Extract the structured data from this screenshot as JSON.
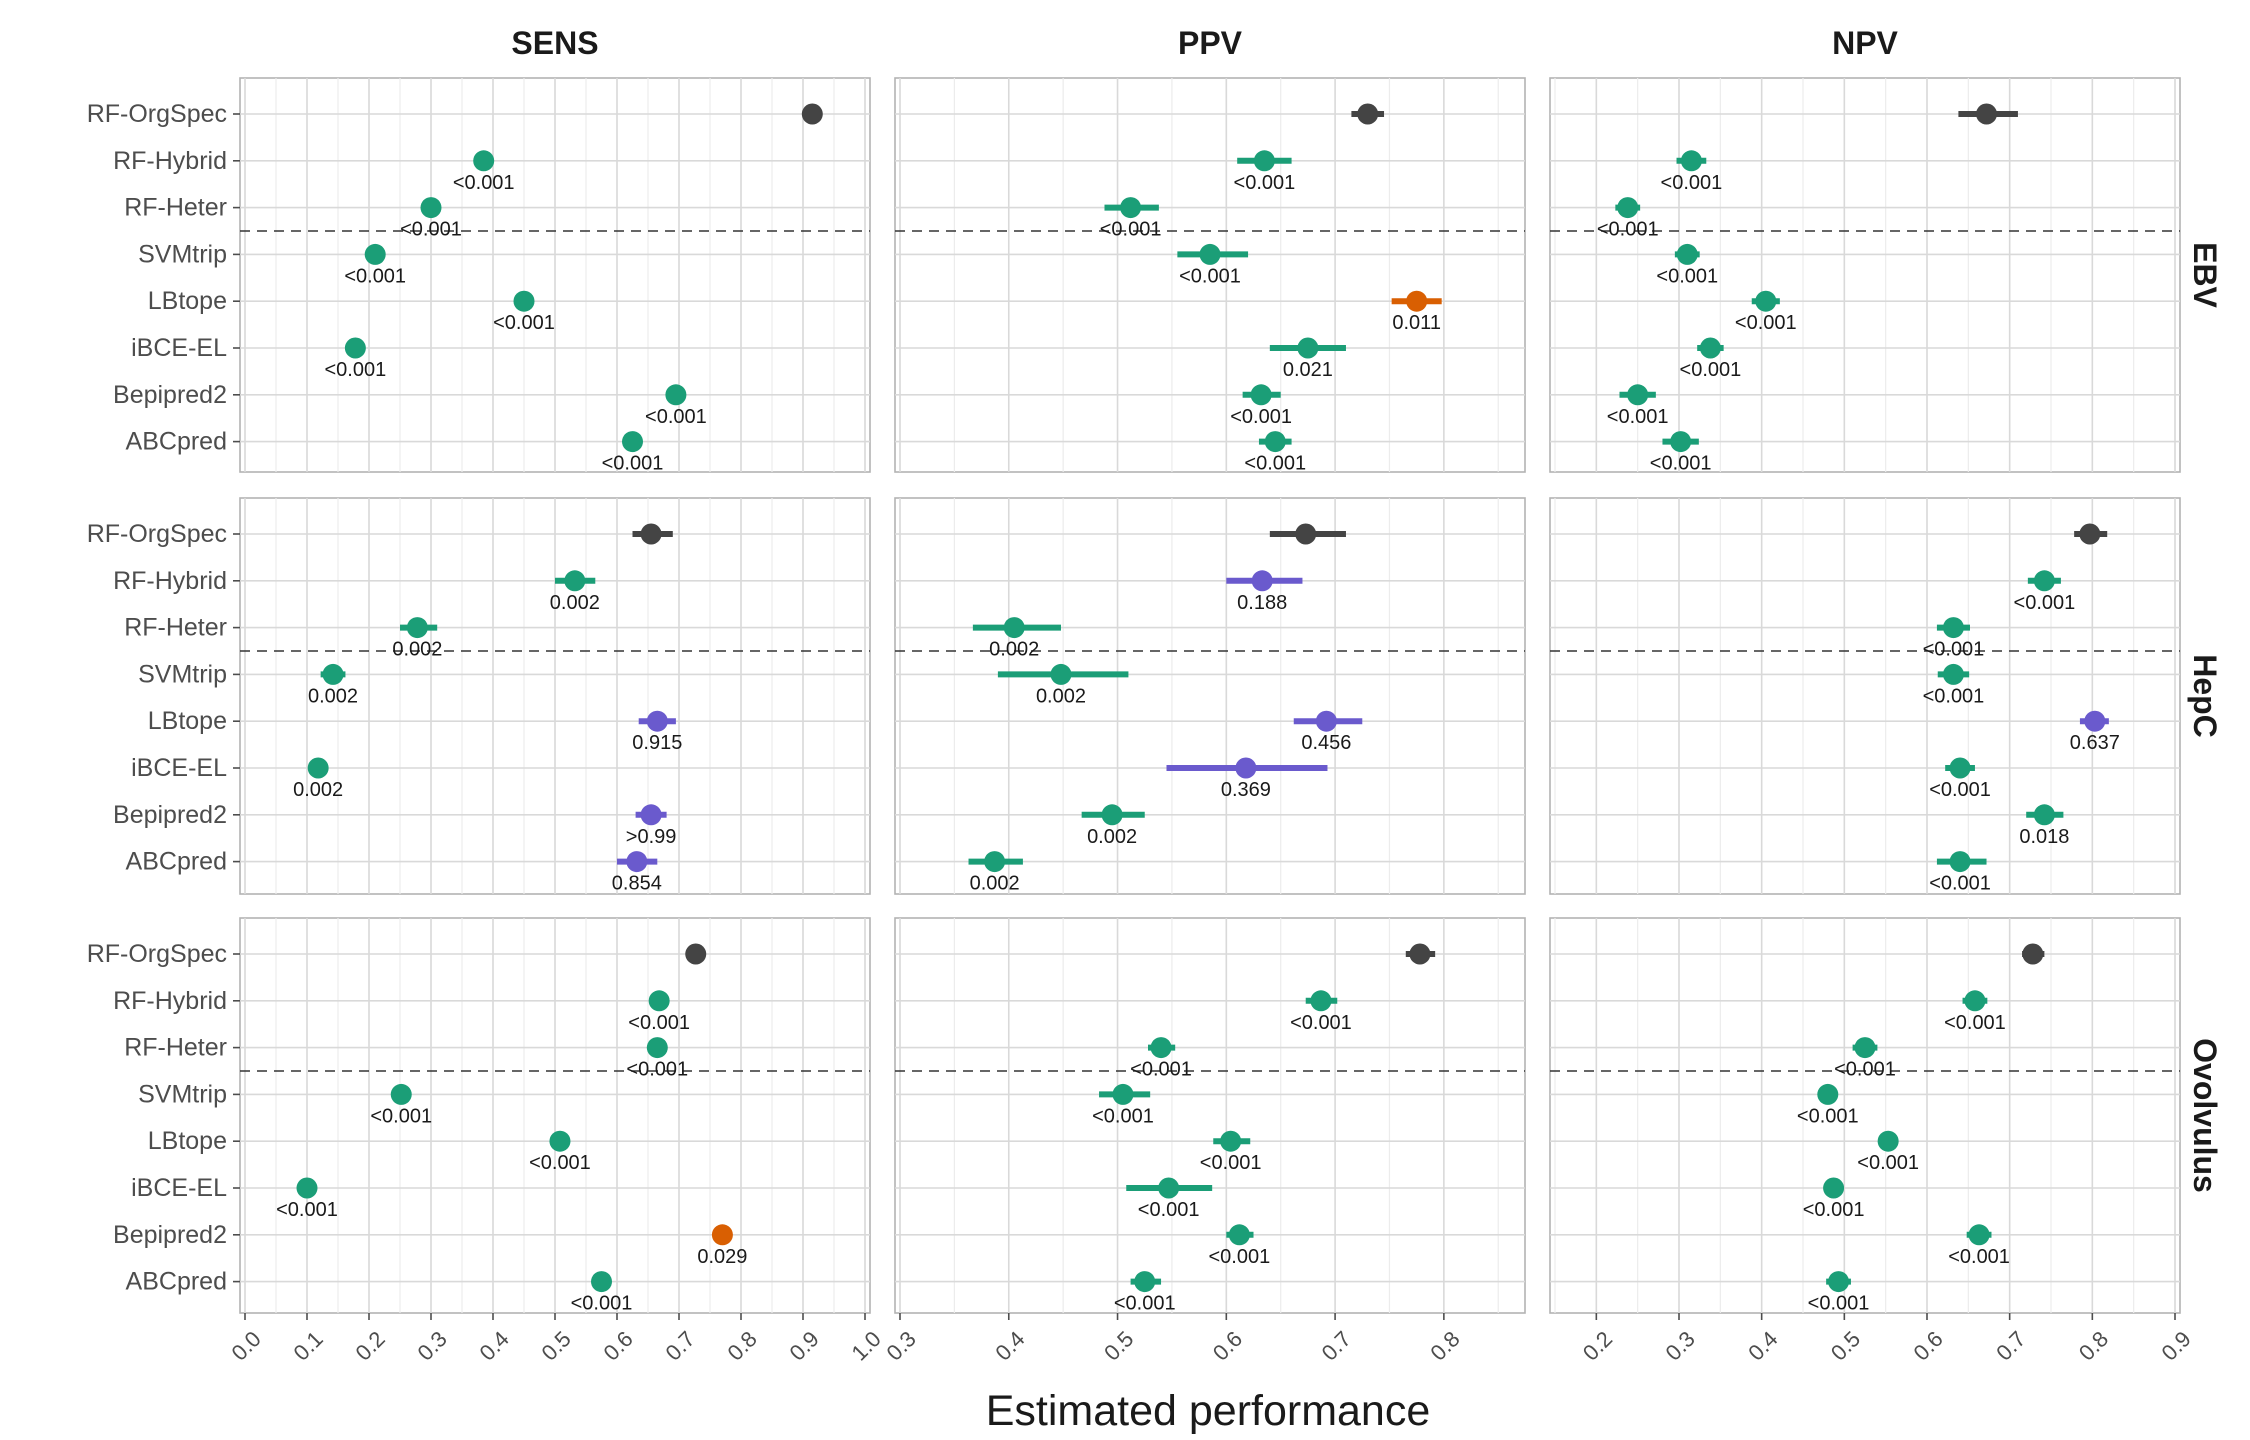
{
  "chart_data": {
    "type": "scatter",
    "xlabel": "Estimated performance",
    "methods": [
      "RF-OrgSpec",
      "RF-Hybrid",
      "RF-Heter",
      "SVMtrip",
      "LBtope",
      "iBCE-EL",
      "Bepipred2",
      "ABCpred"
    ],
    "columns": [
      {
        "name": "SENS",
        "xlim": [
          0.0,
          1.0
        ],
        "ticks": [
          "0.0",
          "0.1",
          "0.2",
          "0.3",
          "0.4",
          "0.5",
          "0.6",
          "0.7",
          "0.8",
          "0.9",
          "1.0"
        ],
        "tick_values": [
          0,
          0.1,
          0.2,
          0.3,
          0.4,
          0.5,
          0.6,
          0.7,
          0.8,
          0.9,
          1.0
        ]
      },
      {
        "name": "PPV",
        "xlim": [
          0.3,
          0.87
        ],
        "ticks": [
          "0.3",
          "0.4",
          "0.5",
          "0.6",
          "0.7",
          "0.8"
        ],
        "tick_values": [
          0.3,
          0.4,
          0.5,
          0.6,
          0.7,
          0.8
        ]
      },
      {
        "name": "NPV",
        "xlim": [
          0.15,
          0.9
        ],
        "ticks": [
          "0.2",
          "0.3",
          "0.4",
          "0.5",
          "0.6",
          "0.7",
          "0.8",
          "0.9"
        ],
        "tick_values": [
          0.2,
          0.3,
          0.4,
          0.5,
          0.6,
          0.7,
          0.8,
          0.9
        ]
      }
    ],
    "rows": [
      "EBV",
      "HepC",
      "Ovolvulus"
    ],
    "colors": {
      "reference": "#444444",
      "worse": "#1b9e77",
      "nonsig": "#6a5acd",
      "better": "#d95f02"
    },
    "panels": {
      "EBV": {
        "SENS": [
          {
            "method": "RF-OrgSpec",
            "est": 0.915,
            "lo": 0.915,
            "hi": 0.915,
            "p": "",
            "c": "reference"
          },
          {
            "method": "RF-Hybrid",
            "est": 0.385,
            "lo": 0.37,
            "hi": 0.4,
            "p": "<0.001",
            "c": "worse"
          },
          {
            "method": "RF-Heter",
            "est": 0.3,
            "lo": 0.29,
            "hi": 0.31,
            "p": "<0.001",
            "c": "worse"
          },
          {
            "method": "SVMtrip",
            "est": 0.21,
            "lo": 0.205,
            "hi": 0.215,
            "p": "<0.001",
            "c": "worse"
          },
          {
            "method": "LBtope",
            "est": 0.45,
            "lo": 0.44,
            "hi": 0.46,
            "p": "<0.001",
            "c": "worse"
          },
          {
            "method": "iBCE-EL",
            "est": 0.178,
            "lo": 0.173,
            "hi": 0.183,
            "p": "<0.001",
            "c": "worse"
          },
          {
            "method": "Bepipred2",
            "est": 0.695,
            "lo": 0.69,
            "hi": 0.7,
            "p": "<0.001",
            "c": "worse"
          },
          {
            "method": "ABCpred",
            "est": 0.625,
            "lo": 0.62,
            "hi": 0.63,
            "p": "<0.001",
            "c": "worse"
          }
        ],
        "PPV": [
          {
            "method": "RF-OrgSpec",
            "est": 0.73,
            "lo": 0.715,
            "hi": 0.745,
            "p": "",
            "c": "reference"
          },
          {
            "method": "RF-Hybrid",
            "est": 0.635,
            "lo": 0.61,
            "hi": 0.66,
            "p": "<0.001",
            "c": "worse"
          },
          {
            "method": "RF-Heter",
            "est": 0.512,
            "lo": 0.488,
            "hi": 0.538,
            "p": "<0.001",
            "c": "worse"
          },
          {
            "method": "SVMtrip",
            "est": 0.585,
            "lo": 0.555,
            "hi": 0.62,
            "p": "<0.001",
            "c": "worse"
          },
          {
            "method": "LBtope",
            "est": 0.775,
            "lo": 0.752,
            "hi": 0.798,
            "p": "0.011",
            "c": "better"
          },
          {
            "method": "iBCE-EL",
            "est": 0.675,
            "lo": 0.64,
            "hi": 0.71,
            "p": "0.021",
            "c": "worse"
          },
          {
            "method": "Bepipred2",
            "est": 0.632,
            "lo": 0.615,
            "hi": 0.65,
            "p": "<0.001",
            "c": "worse"
          },
          {
            "method": "ABCpred",
            "est": 0.645,
            "lo": 0.63,
            "hi": 0.66,
            "p": "<0.001",
            "c": "worse"
          }
        ],
        "NPV": [
          {
            "method": "RF-OrgSpec",
            "est": 0.672,
            "lo": 0.638,
            "hi": 0.71,
            "p": "",
            "c": "reference"
          },
          {
            "method": "RF-Hybrid",
            "est": 0.315,
            "lo": 0.297,
            "hi": 0.333,
            "p": "<0.001",
            "c": "worse"
          },
          {
            "method": "RF-Heter",
            "est": 0.238,
            "lo": 0.223,
            "hi": 0.253,
            "p": "<0.001",
            "c": "worse"
          },
          {
            "method": "SVMtrip",
            "est": 0.31,
            "lo": 0.295,
            "hi": 0.325,
            "p": "<0.001",
            "c": "worse"
          },
          {
            "method": "LBtope",
            "est": 0.405,
            "lo": 0.388,
            "hi": 0.422,
            "p": "<0.001",
            "c": "worse"
          },
          {
            "method": "iBCE-EL",
            "est": 0.338,
            "lo": 0.322,
            "hi": 0.354,
            "p": "<0.001",
            "c": "worse"
          },
          {
            "method": "Bepipred2",
            "est": 0.25,
            "lo": 0.228,
            "hi": 0.272,
            "p": "<0.001",
            "c": "worse"
          },
          {
            "method": "ABCpred",
            "est": 0.302,
            "lo": 0.28,
            "hi": 0.324,
            "p": "<0.001",
            "c": "worse"
          }
        ]
      },
      "HepC": {
        "SENS": [
          {
            "method": "RF-OrgSpec",
            "est": 0.655,
            "lo": 0.625,
            "hi": 0.69,
            "p": "",
            "c": "reference"
          },
          {
            "method": "RF-Hybrid",
            "est": 0.532,
            "lo": 0.5,
            "hi": 0.565,
            "p": "0.002",
            "c": "worse"
          },
          {
            "method": "RF-Heter",
            "est": 0.278,
            "lo": 0.25,
            "hi": 0.31,
            "p": "0.002",
            "c": "worse"
          },
          {
            "method": "SVMtrip",
            "est": 0.142,
            "lo": 0.122,
            "hi": 0.162,
            "p": "0.002",
            "c": "worse"
          },
          {
            "method": "LBtope",
            "est": 0.665,
            "lo": 0.635,
            "hi": 0.695,
            "p": "0.915",
            "c": "nonsig"
          },
          {
            "method": "iBCE-EL",
            "est": 0.118,
            "lo": 0.103,
            "hi": 0.133,
            "p": "0.002",
            "c": "worse"
          },
          {
            "method": "Bepipred2",
            "est": 0.655,
            "lo": 0.63,
            "hi": 0.68,
            "p": ">0.99",
            "c": "nonsig"
          },
          {
            "method": "ABCpred",
            "est": 0.632,
            "lo": 0.6,
            "hi": 0.665,
            "p": "0.854",
            "c": "nonsig"
          }
        ],
        "PPV": [
          {
            "method": "RF-OrgSpec",
            "est": 0.673,
            "lo": 0.64,
            "hi": 0.71,
            "p": "",
            "c": "reference"
          },
          {
            "method": "RF-Hybrid",
            "est": 0.633,
            "lo": 0.6,
            "hi": 0.67,
            "p": "0.188",
            "c": "nonsig"
          },
          {
            "method": "RF-Heter",
            "est": 0.405,
            "lo": 0.367,
            "hi": 0.448,
            "p": "0.002",
            "c": "worse"
          },
          {
            "method": "SVMtrip",
            "est": 0.448,
            "lo": 0.39,
            "hi": 0.51,
            "p": "0.002",
            "c": "worse"
          },
          {
            "method": "LBtope",
            "est": 0.692,
            "lo": 0.662,
            "hi": 0.725,
            "p": "0.456",
            "c": "nonsig"
          },
          {
            "method": "iBCE-EL",
            "est": 0.618,
            "lo": 0.545,
            "hi": 0.693,
            "p": "0.369",
            "c": "nonsig"
          },
          {
            "method": "Bepipred2",
            "est": 0.495,
            "lo": 0.467,
            "hi": 0.525,
            "p": "0.002",
            "c": "worse"
          },
          {
            "method": "ABCpred",
            "est": 0.387,
            "lo": 0.363,
            "hi": 0.413,
            "p": "0.002",
            "c": "worse"
          }
        ],
        "NPV": [
          {
            "method": "RF-OrgSpec",
            "est": 0.797,
            "lo": 0.778,
            "hi": 0.818,
            "p": "",
            "c": "reference"
          },
          {
            "method": "RF-Hybrid",
            "est": 0.742,
            "lo": 0.722,
            "hi": 0.762,
            "p": "<0.001",
            "c": "worse"
          },
          {
            "method": "RF-Heter",
            "est": 0.632,
            "lo": 0.612,
            "hi": 0.652,
            "p": "<0.001",
            "c": "worse"
          },
          {
            "method": "SVMtrip",
            "est": 0.632,
            "lo": 0.613,
            "hi": 0.651,
            "p": "<0.001",
            "c": "worse"
          },
          {
            "method": "LBtope",
            "est": 0.803,
            "lo": 0.785,
            "hi": 0.82,
            "p": "0.637",
            "c": "nonsig"
          },
          {
            "method": "iBCE-EL",
            "est": 0.64,
            "lo": 0.622,
            "hi": 0.658,
            "p": "<0.001",
            "c": "worse"
          },
          {
            "method": "Bepipred2",
            "est": 0.742,
            "lo": 0.72,
            "hi": 0.765,
            "p": "0.018",
            "c": "worse"
          },
          {
            "method": "ABCpred",
            "est": 0.64,
            "lo": 0.612,
            "hi": 0.672,
            "p": "<0.001",
            "c": "worse"
          }
        ]
      },
      "Ovolvulus": {
        "SENS": [
          {
            "method": "RF-OrgSpec",
            "est": 0.727,
            "lo": 0.727,
            "hi": 0.727,
            "p": "",
            "c": "reference"
          },
          {
            "method": "RF-Hybrid",
            "est": 0.668,
            "lo": 0.668,
            "hi": 0.668,
            "p": "<0.001",
            "c": "worse"
          },
          {
            "method": "RF-Heter",
            "est": 0.665,
            "lo": 0.665,
            "hi": 0.665,
            "p": "<0.001",
            "c": "worse"
          },
          {
            "method": "SVMtrip",
            "est": 0.252,
            "lo": 0.252,
            "hi": 0.252,
            "p": "<0.001",
            "c": "worse"
          },
          {
            "method": "LBtope",
            "est": 0.508,
            "lo": 0.508,
            "hi": 0.508,
            "p": "<0.001",
            "c": "worse"
          },
          {
            "method": "iBCE-EL",
            "est": 0.1,
            "lo": 0.1,
            "hi": 0.1,
            "p": "<0.001",
            "c": "worse"
          },
          {
            "method": "Bepipred2",
            "est": 0.77,
            "lo": 0.77,
            "hi": 0.77,
            "p": "0.029",
            "c": "better"
          },
          {
            "method": "ABCpred",
            "est": 0.575,
            "lo": 0.575,
            "hi": 0.575,
            "p": "<0.001",
            "c": "worse"
          }
        ],
        "PPV": [
          {
            "method": "RF-OrgSpec",
            "est": 0.778,
            "lo": 0.765,
            "hi": 0.792,
            "p": "",
            "c": "reference"
          },
          {
            "method": "RF-Hybrid",
            "est": 0.687,
            "lo": 0.673,
            "hi": 0.702,
            "p": "<0.001",
            "c": "worse"
          },
          {
            "method": "RF-Heter",
            "est": 0.54,
            "lo": 0.528,
            "hi": 0.553,
            "p": "<0.001",
            "c": "worse"
          },
          {
            "method": "SVMtrip",
            "est": 0.505,
            "lo": 0.483,
            "hi": 0.53,
            "p": "<0.001",
            "c": "worse"
          },
          {
            "method": "LBtope",
            "est": 0.604,
            "lo": 0.588,
            "hi": 0.622,
            "p": "<0.001",
            "c": "worse"
          },
          {
            "method": "iBCE-EL",
            "est": 0.547,
            "lo": 0.508,
            "hi": 0.587,
            "p": "<0.001",
            "c": "worse"
          },
          {
            "method": "Bepipred2",
            "est": 0.612,
            "lo": 0.6,
            "hi": 0.625,
            "p": "<0.001",
            "c": "worse"
          },
          {
            "method": "ABCpred",
            "est": 0.525,
            "lo": 0.512,
            "hi": 0.54,
            "p": "<0.001",
            "c": "worse"
          }
        ],
        "NPV": [
          {
            "method": "RF-OrgSpec",
            "est": 0.728,
            "lo": 0.715,
            "hi": 0.742,
            "p": "",
            "c": "reference"
          },
          {
            "method": "RF-Hybrid",
            "est": 0.658,
            "lo": 0.643,
            "hi": 0.673,
            "p": "<0.001",
            "c": "worse"
          },
          {
            "method": "RF-Heter",
            "est": 0.525,
            "lo": 0.51,
            "hi": 0.54,
            "p": "<0.001",
            "c": "worse"
          },
          {
            "method": "SVMtrip",
            "est": 0.48,
            "lo": 0.48,
            "hi": 0.48,
            "p": "<0.001",
            "c": "worse"
          },
          {
            "method": "LBtope",
            "est": 0.553,
            "lo": 0.543,
            "hi": 0.563,
            "p": "<0.001",
            "c": "worse"
          },
          {
            "method": "iBCE-EL",
            "est": 0.487,
            "lo": 0.487,
            "hi": 0.487,
            "p": "<0.001",
            "c": "worse"
          },
          {
            "method": "Bepipred2",
            "est": 0.663,
            "lo": 0.648,
            "hi": 0.678,
            "p": "<0.001",
            "c": "worse"
          },
          {
            "method": "ABCpred",
            "est": 0.493,
            "lo": 0.478,
            "hi": 0.508,
            "p": "<0.001",
            "c": "worse"
          }
        ]
      }
    }
  }
}
